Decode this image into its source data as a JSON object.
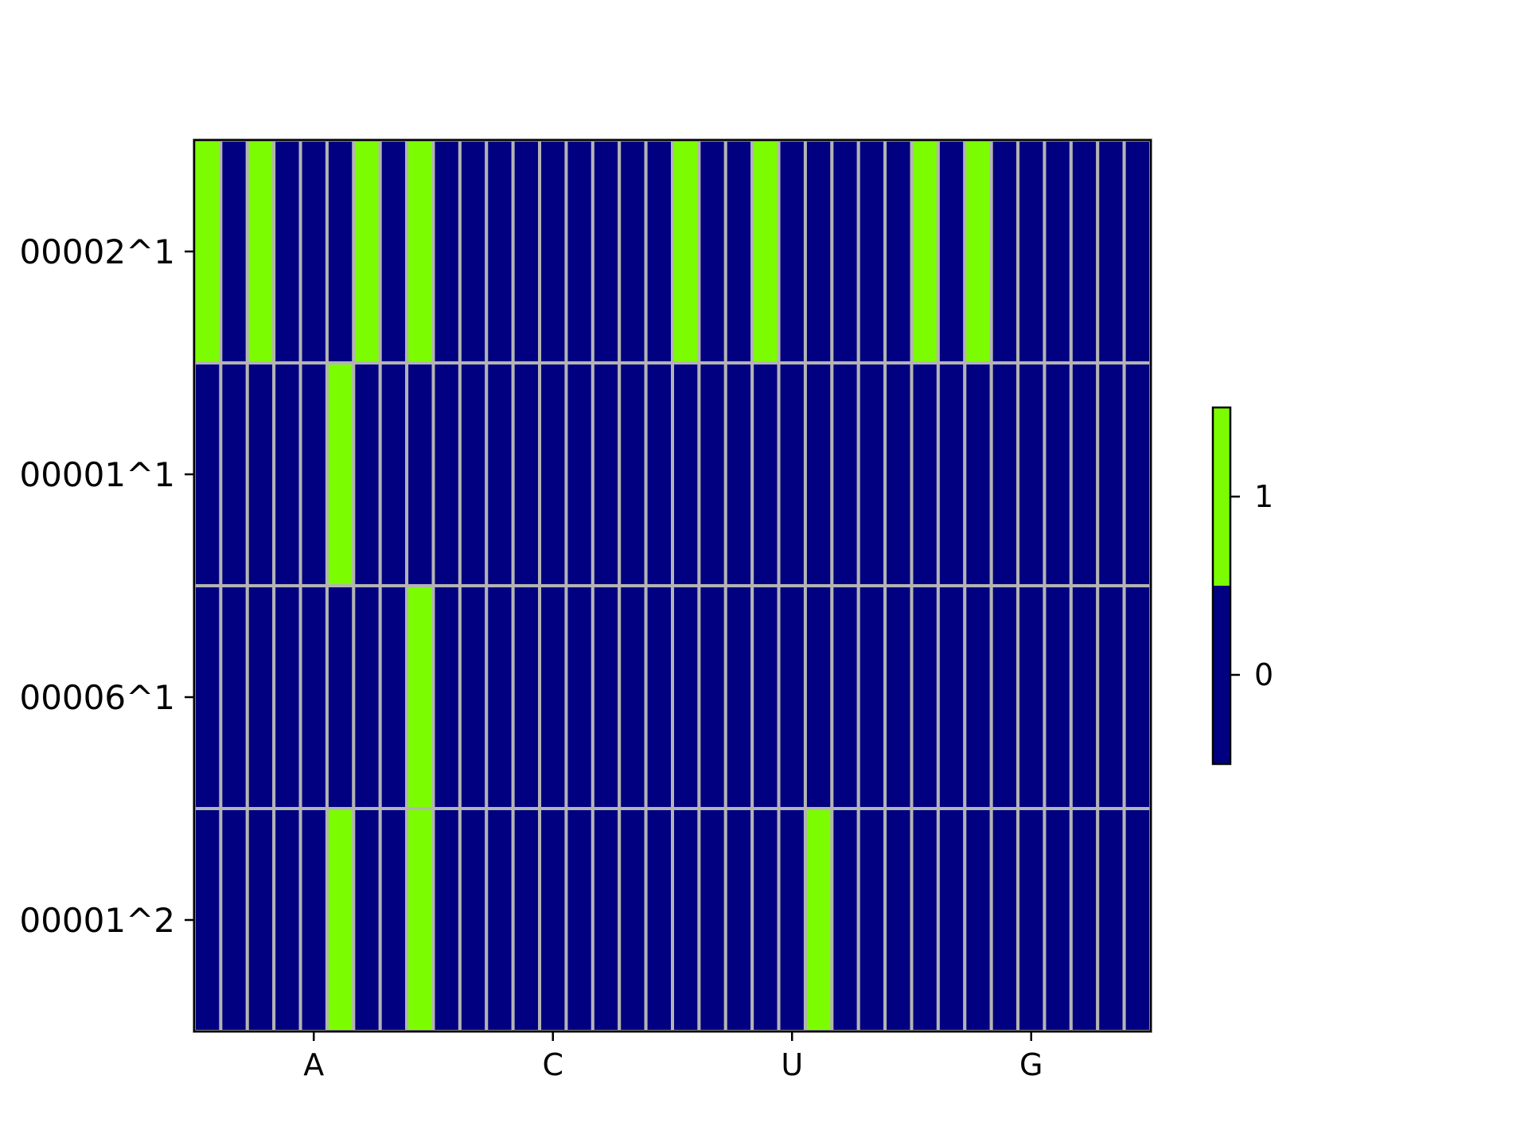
{
  "chart_data": {
    "type": "heatmap",
    "title": "",
    "xlabel": "",
    "ylabel": "",
    "x_ticks": [
      "A",
      "C",
      "U",
      "G"
    ],
    "y_labels": [
      "00002^1",
      "00001^1",
      "00006^1",
      "00001^2"
    ],
    "n_columns": 36,
    "grid": true,
    "matrix": [
      [
        1,
        0,
        1,
        0,
        0,
        0,
        1,
        0,
        1,
        0,
        0,
        0,
        0,
        0,
        0,
        0,
        0,
        0,
        1,
        0,
        0,
        1,
        0,
        0,
        0,
        0,
        0,
        1,
        0,
        1,
        0,
        0,
        0,
        0,
        0,
        0
      ],
      [
        0,
        0,
        0,
        0,
        0,
        1,
        0,
        0,
        0,
        0,
        0,
        0,
        0,
        0,
        0,
        0,
        0,
        0,
        0,
        0,
        0,
        0,
        0,
        0,
        0,
        0,
        0,
        0,
        0,
        0,
        0,
        0,
        0,
        0,
        0,
        0
      ],
      [
        0,
        0,
        0,
        0,
        0,
        0,
        0,
        0,
        1,
        0,
        0,
        0,
        0,
        0,
        0,
        0,
        0,
        0,
        0,
        0,
        0,
        0,
        0,
        0,
        0,
        0,
        0,
        0,
        0,
        0,
        0,
        0,
        0,
        0,
        0,
        0
      ],
      [
        0,
        0,
        0,
        0,
        0,
        1,
        0,
        0,
        1,
        0,
        0,
        0,
        0,
        0,
        0,
        0,
        0,
        0,
        0,
        0,
        0,
        0,
        0,
        1,
        0,
        0,
        0,
        0,
        0,
        0,
        0,
        0,
        0,
        0,
        0,
        0
      ]
    ],
    "colorbar": {
      "ticks": [
        "0",
        "1"
      ],
      "range": [
        -0.5,
        1.5
      ],
      "colors": {
        "0": "#000080",
        "1": "#7cfc00"
      }
    },
    "grid_color": "#b4b4b4"
  }
}
